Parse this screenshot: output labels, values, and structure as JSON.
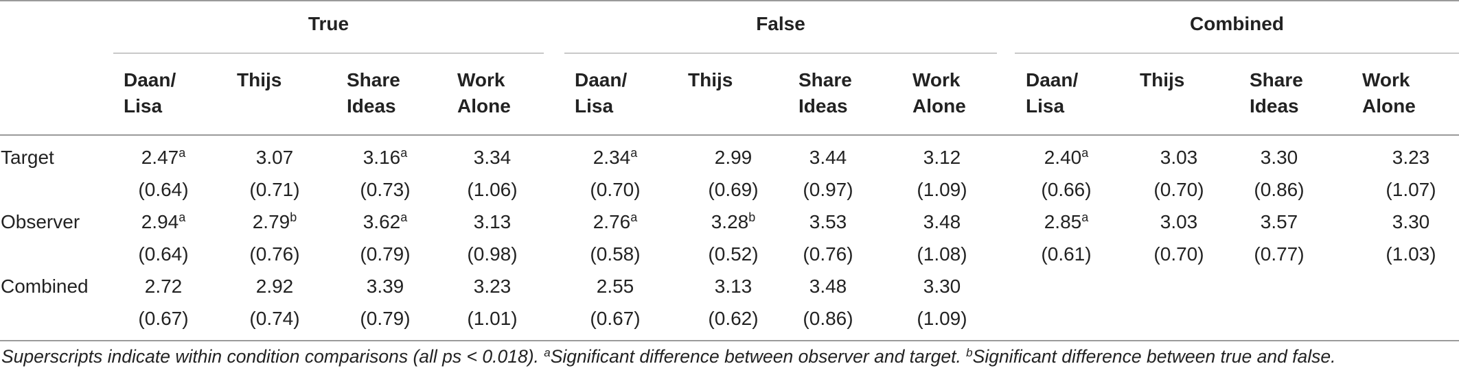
{
  "groups": [
    "True",
    "False",
    "Combined"
  ],
  "columns": [
    "Daan/ Lisa",
    "Thijs",
    "Share Ideas",
    "Work Alone"
  ],
  "rows": [
    {
      "label": "Target",
      "means": [
        {
          "v": "2.47",
          "s": "a"
        },
        {
          "v": "3.07",
          "s": ""
        },
        {
          "v": "3.16",
          "s": "a"
        },
        {
          "v": "3.34",
          "s": ""
        },
        {
          "v": "2.34",
          "s": "a"
        },
        {
          "v": "2.99",
          "s": ""
        },
        {
          "v": "3.44",
          "s": ""
        },
        {
          "v": "3.12",
          "s": ""
        },
        {
          "v": "2.40",
          "s": "a"
        },
        {
          "v": "3.03",
          "s": ""
        },
        {
          "v": "3.30",
          "s": ""
        },
        {
          "v": "3.23",
          "s": ""
        }
      ],
      "sds": [
        "(0.64)",
        "(0.71)",
        "(0.73)",
        "(1.06)",
        "(0.70)",
        "(0.69)",
        "(0.97)",
        "(1.09)",
        "(0.66)",
        "(0.70)",
        "(0.86)",
        "(1.07)"
      ]
    },
    {
      "label": "Observer",
      "means": [
        {
          "v": "2.94",
          "s": "a"
        },
        {
          "v": "2.79",
          "s": "b"
        },
        {
          "v": "3.62",
          "s": "a"
        },
        {
          "v": "3.13",
          "s": ""
        },
        {
          "v": "2.76",
          "s": "a"
        },
        {
          "v": "3.28",
          "s": "b"
        },
        {
          "v": "3.53",
          "s": ""
        },
        {
          "v": "3.48",
          "s": ""
        },
        {
          "v": "2.85",
          "s": "a"
        },
        {
          "v": "3.03",
          "s": ""
        },
        {
          "v": "3.57",
          "s": ""
        },
        {
          "v": "3.30",
          "s": ""
        }
      ],
      "sds": [
        "(0.64)",
        "(0.76)",
        "(0.79)",
        "(0.98)",
        "(0.58)",
        "(0.52)",
        "(0.76)",
        "(1.08)",
        "(0.61)",
        "(0.70)",
        "(0.77)",
        "(1.03)"
      ]
    },
    {
      "label": "Combined",
      "means": [
        {
          "v": "2.72",
          "s": ""
        },
        {
          "v": "2.92",
          "s": ""
        },
        {
          "v": "3.39",
          "s": ""
        },
        {
          "v": "3.23",
          "s": ""
        },
        {
          "v": "2.55",
          "s": ""
        },
        {
          "v": "3.13",
          "s": ""
        },
        {
          "v": "3.48",
          "s": ""
        },
        {
          "v": "3.30",
          "s": ""
        }
      ],
      "sds": [
        "(0.67)",
        "(0.74)",
        "(0.79)",
        "(1.01)",
        "(0.67)",
        "(0.62)",
        "(0.86)",
        "(1.09)"
      ]
    }
  ],
  "footnote": {
    "lead": "Superscripts indicate within condition comparisons (all ps < 0.018). ",
    "mark_a": "a",
    "text_a": "Significant difference between observer and target. ",
    "mark_b": "b",
    "text_b": "Significant difference between true and false."
  }
}
